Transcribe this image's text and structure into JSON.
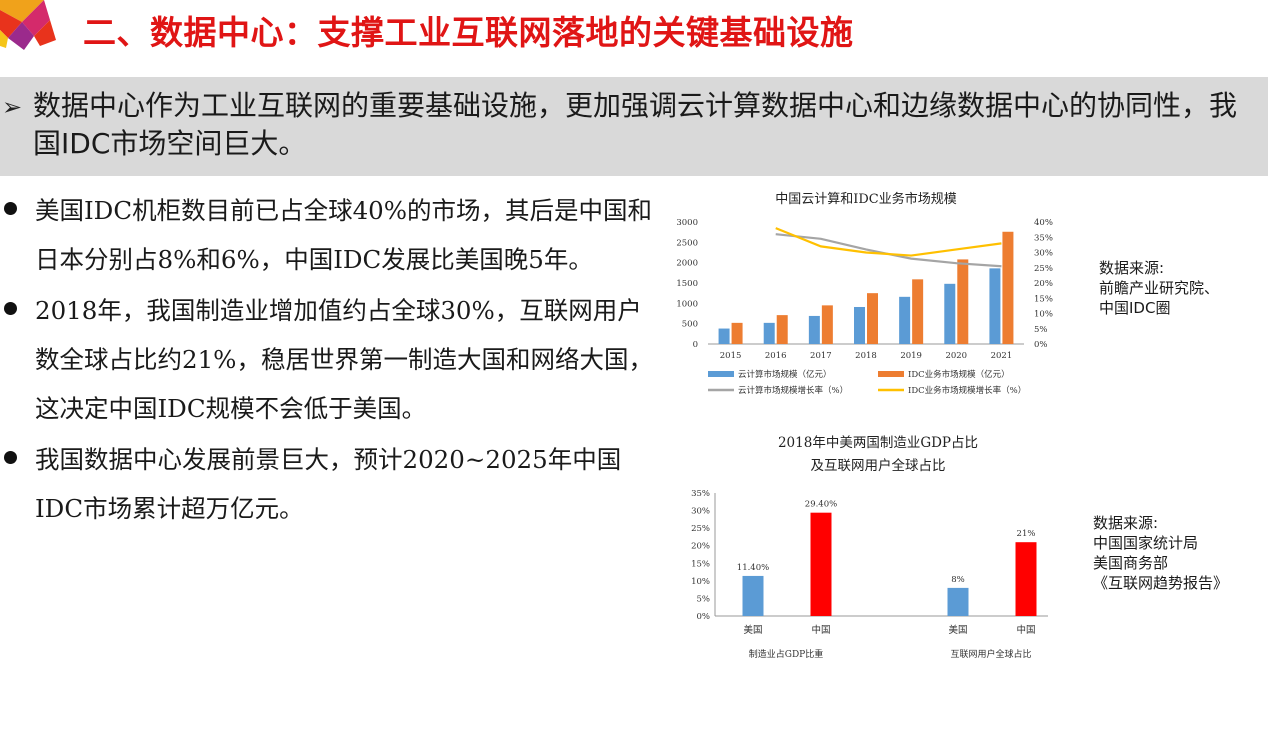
{
  "header": {
    "title": "二、数据中心：支撑工业互联网落地的关键基础设施"
  },
  "summary": {
    "arrow_icon": "chevron-right",
    "text": "数据中心作为工业互联网的重要基础设施，更加强调云计算数据中心和边缘数据中心的协同性，我国IDC市场空间巨大。"
  },
  "bullets": [
    "美国IDC机柜数目前已占全球40%的市场，其后是中国和日本分别占8%和6%，中国IDC发展比美国晚5年。",
    "2018年，我国制造业增加值约占全球30%，互联网用户数全球占比约21%，稳居世界第一制造大国和网络大国，这决定中国IDC规模不会低于美国。",
    "我国数据中心发展前景巨大，预计2020~2025年中国IDC市场累计超万亿元。"
  ],
  "sources": {
    "chart1": [
      "数据来源:",
      "前瞻产业研究院、",
      "中国IDC圈"
    ],
    "chart2": [
      "数据来源:",
      "中国国家统计局",
      "美国商务部",
      "《互联网趋势报告》"
    ]
  },
  "chart_data": [
    {
      "type": "bar",
      "title": "中国云计算和IDC业务市场规模",
      "categories": [
        "2015",
        "2016",
        "2017",
        "2018",
        "2019",
        "2020",
        "2021"
      ],
      "ylim": [
        0,
        3000
      ],
      "yticks": [
        "0",
        "500",
        "1000",
        "1500",
        "2000",
        "2500",
        "3000"
      ],
      "y2lim": [
        0,
        40
      ],
      "y2ticks": [
        "0%",
        "5%",
        "10%",
        "15%",
        "20%",
        "25%",
        "30%",
        "35%",
        "40%"
      ],
      "series": [
        {
          "name": "云计算市场规模（亿元）",
          "kind": "bar",
          "color": "#5b9bd5",
          "values": [
            380,
            520,
            690,
            910,
            1160,
            1480,
            1860
          ]
        },
        {
          "name": "IDC业务市场规模（亿元）",
          "kind": "bar",
          "color": "#ed7d31",
          "values": [
            520,
            710,
            950,
            1250,
            1590,
            2080,
            2760
          ]
        },
        {
          "name": "云计算市场规模增长率（%）",
          "kind": "line",
          "color": "#a5a5a5",
          "values": [
            null,
            36,
            34.5,
            31,
            28,
            26.5,
            25.5
          ]
        },
        {
          "name": "IDC业务市场规模增长率（%）",
          "kind": "line",
          "color": "#ffc000",
          "values": [
            null,
            38,
            32,
            30,
            29,
            31,
            33
          ]
        }
      ],
      "grid": false,
      "legend_position": "bottom"
    },
    {
      "type": "bar",
      "title_lines": [
        "2018年中美两国制造业GDP占比",
        "及互联网用户全球占比"
      ],
      "groups": [
        {
          "label": "制造业占GDP比重",
          "categories": [
            "美国",
            "中国"
          ],
          "values": [
            11.4,
            29.4
          ],
          "labels": [
            "11.40%",
            "29.40%"
          ]
        },
        {
          "label": "互联网用户全球占比",
          "categories": [
            "美国",
            "中国"
          ],
          "values": [
            8,
            21
          ],
          "labels": [
            "8%",
            "21%"
          ]
        }
      ],
      "colors": {
        "美国": "#5b9bd5",
        "中国": "#ff0000"
      },
      "ylim": [
        0,
        35
      ],
      "yticks": [
        "0%",
        "5%",
        "10%",
        "15%",
        "20%",
        "25%",
        "30%",
        "35%"
      ],
      "grid": false
    }
  ]
}
